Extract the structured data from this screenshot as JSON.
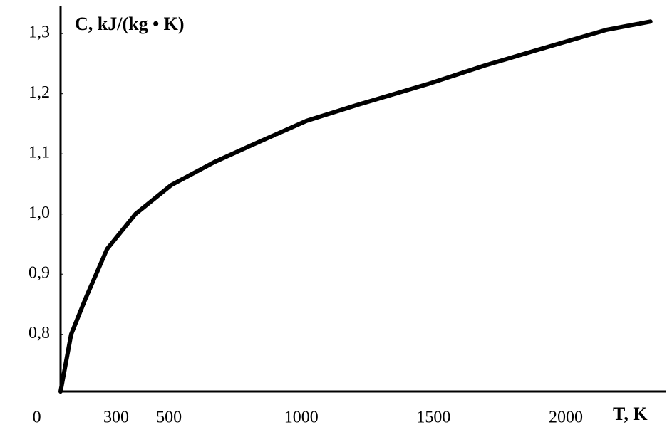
{
  "chart_data": {
    "type": "line",
    "y_label": "C, kJ/(kg • K)",
    "x_label": "T, K",
    "series": [
      {
        "color": "#000000",
        "x": [
          90,
          130,
          184,
          266,
          373,
          508,
          670,
          805,
          1020,
          1209,
          1478,
          1694,
          1910,
          2152,
          2320
        ],
        "values": [
          0.705,
          0.8,
          0.859,
          0.942,
          1.0,
          1.048,
          1.086,
          1.113,
          1.155,
          1.181,
          1.216,
          1.247,
          1.275,
          1.306,
          1.32
        ]
      }
    ],
    "xlim": [
      90,
      2380
    ],
    "ylim": [
      0.705,
      1.344
    ],
    "xticks": [
      0,
      300,
      500,
      1000,
      1500,
      2000
    ],
    "yticks": [
      {
        "value": 0.8,
        "label": "0,8"
      },
      {
        "value": 0.9,
        "label": "0,9"
      },
      {
        "value": 1.0,
        "label": "1,0"
      },
      {
        "value": 1.1,
        "label": "1,1"
      },
      {
        "value": 1.2,
        "label": "1,2"
      },
      {
        "value": 1.3,
        "label": "1,3"
      }
    ],
    "grid": false
  }
}
